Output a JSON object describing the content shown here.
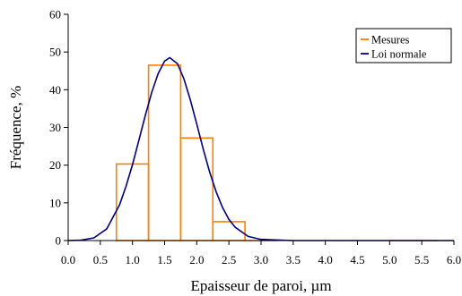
{
  "colors": {
    "measures": "#ff8000",
    "normal": "#000080",
    "axis": "#000000",
    "background": "#ffffff"
  },
  "chart_data": {
    "type": "bar",
    "xlabel": "Epaisseur de paroi, µm",
    "ylabel": "Fréquence, %",
    "xlim": [
      0.0,
      6.0
    ],
    "ylim": [
      0,
      60
    ],
    "x_ticks": [
      "0.0",
      "0.5",
      "1.0",
      "1.5",
      "2.0",
      "2.5",
      "3.0",
      "3.5",
      "4.0",
      "4.5",
      "5.0",
      "5.5",
      "6.0"
    ],
    "y_ticks": [
      "0",
      "10",
      "20",
      "30",
      "40",
      "50",
      "60"
    ],
    "grid": false,
    "legend_position": "top-right",
    "series": [
      {
        "name": "Mesures",
        "type": "histogram",
        "bins": [
          {
            "x0": 0.75,
            "x1": 1.25,
            "value": 20.3
          },
          {
            "x0": 1.25,
            "x1": 1.75,
            "value": 46.5
          },
          {
            "x0": 1.75,
            "x1": 2.25,
            "value": 27.2
          },
          {
            "x0": 2.25,
            "x1": 2.75,
            "value": 5.0
          },
          {
            "x0": 2.75,
            "x1": 3.25,
            "value": 0
          },
          {
            "x0": 5.0,
            "x1": 5.75,
            "value": 0
          }
        ]
      },
      {
        "name": "Loi normale",
        "type": "line",
        "x": [
          0.0,
          0.2,
          0.4,
          0.6,
          0.8,
          0.9,
          1.0,
          1.1,
          1.2,
          1.3,
          1.4,
          1.5,
          1.58,
          1.7,
          1.8,
          1.9,
          2.0,
          2.1,
          2.2,
          2.3,
          2.4,
          2.5,
          2.6,
          2.8,
          3.0,
          3.5,
          4.0,
          5.0,
          6.0
        ],
        "y": [
          0.0,
          0.1,
          0.7,
          3.1,
          9.5,
          14.4,
          20.1,
          26.6,
          33.2,
          39.3,
          44.3,
          47.6,
          48.5,
          46.9,
          42.9,
          37.3,
          30.9,
          24.3,
          18.2,
          13.0,
          8.8,
          5.6,
          3.5,
          1.1,
          0.3,
          0.0,
          0.0,
          0.0,
          0.0
        ]
      }
    ]
  }
}
